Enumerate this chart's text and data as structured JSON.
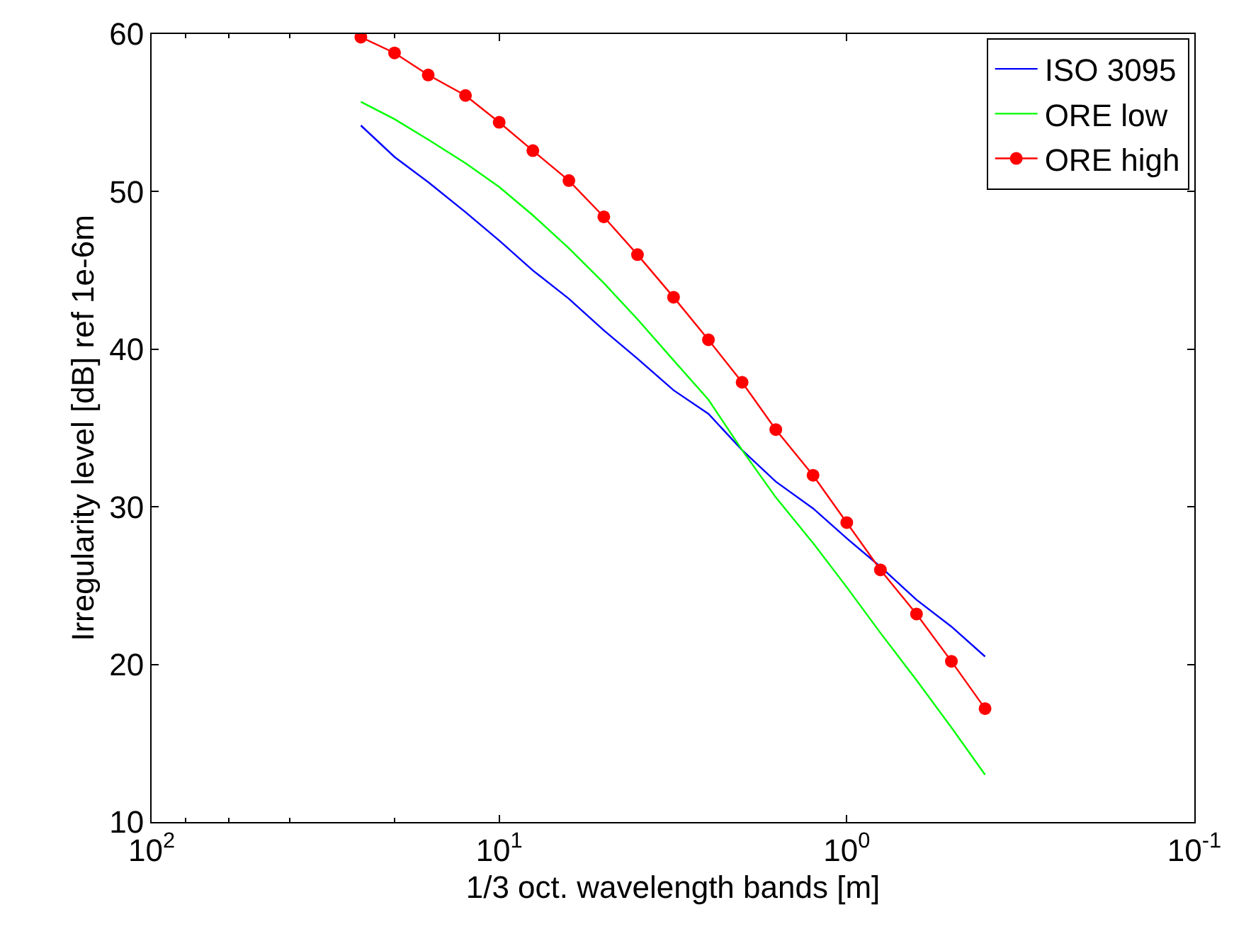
{
  "chart_data": {
    "type": "line",
    "xlabel": "1/3 oct. wavelength bands [m]",
    "ylabel": "Irregularity level [dB] ref 1e-6m",
    "x": [
      25,
      20,
      16,
      12.5,
      10,
      8,
      6.3,
      5,
      4,
      3.15,
      2.5,
      2,
      1.6,
      1.25,
      1,
      0.8,
      0.63,
      0.5,
      0.4
    ],
    "series": [
      {
        "name": "ISO 3095",
        "color": "#0000ff",
        "marker": "none",
        "values": [
          54.2,
          52.2,
          50.6,
          48.7,
          46.9,
          45.0,
          43.2,
          41.2,
          39.4,
          37.4,
          35.9,
          33.6,
          31.6,
          29.9,
          28.0,
          26.2,
          24.1,
          22.4,
          20.5
        ]
      },
      {
        "name": "ORE low",
        "color": "#00ff00",
        "marker": "none",
        "values": [
          55.7,
          54.6,
          53.3,
          51.8,
          50.3,
          48.5,
          46.4,
          44.2,
          41.9,
          39.3,
          36.8,
          33.6,
          30.6,
          27.7,
          24.9,
          22.0,
          19.0,
          16.0,
          13.0
        ]
      },
      {
        "name": "ORE high",
        "color": "#ff0000",
        "marker": "circle",
        "values": [
          59.8,
          58.8,
          57.4,
          56.1,
          54.4,
          52.6,
          50.7,
          48.4,
          46.0,
          43.3,
          40.6,
          37.9,
          34.9,
          32.0,
          29.0,
          26.0,
          23.2,
          20.2,
          17.2
        ]
      }
    ],
    "log": "x",
    "xlim": [
      100,
      0.1
    ],
    "xticks": [
      {
        "value": 100,
        "label": "10$^{2}$"
      },
      {
        "value": 10,
        "label": "10$^{1}$"
      },
      {
        "value": 1,
        "label": "10$^{0}$"
      },
      {
        "value": 0.1,
        "label": "10$^{-1}$"
      }
    ],
    "ylim": [
      10,
      60
    ],
    "yticks": [
      10,
      20,
      30,
      40,
      50,
      60
    ],
    "legend": "top right"
  }
}
